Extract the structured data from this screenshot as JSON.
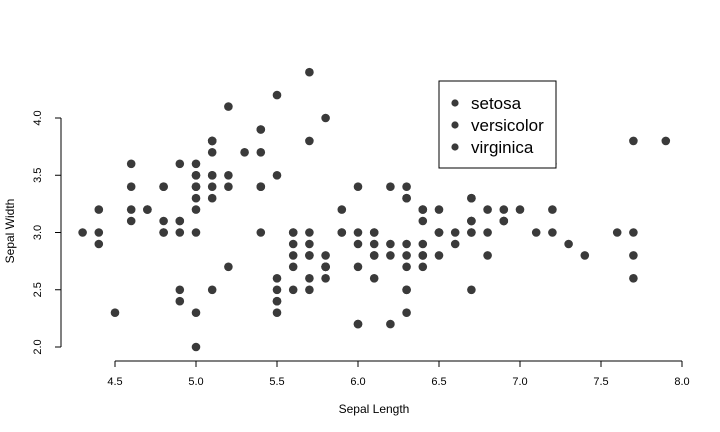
{
  "chart_data": {
    "type": "scatter",
    "xlabel": "Sepal Length",
    "ylabel": "Sepal Width",
    "xlim": [
      4.3,
      7.9
    ],
    "ylim": [
      2.0,
      4.4
    ],
    "x_ticks": [
      4.5,
      5.0,
      5.5,
      6.0,
      6.5,
      7.0,
      7.5,
      8.0
    ],
    "x_tick_labels": [
      "4.5",
      "5.0",
      "5.5",
      "6.0",
      "6.5",
      "7.0",
      "7.5",
      "8.0"
    ],
    "y_ticks": [
      2.0,
      2.5,
      3.0,
      3.5,
      4.0
    ],
    "y_tick_labels": [
      "2.0",
      "2.5",
      "3.0",
      "3.5",
      "4.0"
    ],
    "grid": false,
    "legend_position": "top-right",
    "marker_color": "#3a3a3a",
    "series": [
      {
        "name": "setosa",
        "points": [
          [
            5.1,
            3.5
          ],
          [
            4.9,
            3.0
          ],
          [
            4.7,
            3.2
          ],
          [
            4.6,
            3.1
          ],
          [
            5.0,
            3.6
          ],
          [
            5.4,
            3.9
          ],
          [
            4.6,
            3.4
          ],
          [
            5.0,
            3.4
          ],
          [
            4.4,
            2.9
          ],
          [
            4.9,
            3.1
          ],
          [
            5.4,
            3.7
          ],
          [
            4.8,
            3.4
          ],
          [
            4.8,
            3.0
          ],
          [
            4.3,
            3.0
          ],
          [
            5.8,
            4.0
          ],
          [
            5.7,
            4.4
          ],
          [
            5.4,
            3.9
          ],
          [
            5.1,
            3.5
          ],
          [
            5.7,
            3.8
          ],
          [
            5.1,
            3.8
          ],
          [
            5.4,
            3.4
          ],
          [
            5.1,
            3.7
          ],
          [
            4.6,
            3.6
          ],
          [
            5.1,
            3.3
          ],
          [
            4.8,
            3.4
          ],
          [
            5.0,
            3.0
          ],
          [
            5.0,
            3.4
          ],
          [
            5.2,
            3.5
          ],
          [
            5.2,
            3.4
          ],
          [
            4.7,
            3.2
          ],
          [
            4.8,
            3.1
          ],
          [
            5.4,
            3.4
          ],
          [
            5.2,
            4.1
          ],
          [
            5.5,
            4.2
          ],
          [
            4.9,
            3.1
          ],
          [
            5.0,
            3.2
          ],
          [
            5.5,
            3.5
          ],
          [
            4.9,
            3.6
          ],
          [
            4.4,
            3.0
          ],
          [
            5.1,
            3.4
          ],
          [
            5.0,
            3.5
          ],
          [
            4.5,
            2.3
          ],
          [
            4.4,
            3.2
          ],
          [
            5.0,
            3.5
          ],
          [
            5.1,
            3.8
          ],
          [
            4.8,
            3.0
          ],
          [
            5.1,
            3.8
          ],
          [
            4.6,
            3.2
          ],
          [
            5.3,
            3.7
          ],
          [
            5.0,
            3.3
          ]
        ]
      },
      {
        "name": "versicolor",
        "points": [
          [
            7.0,
            3.2
          ],
          [
            6.4,
            3.2
          ],
          [
            6.9,
            3.1
          ],
          [
            5.5,
            2.3
          ],
          [
            6.5,
            2.8
          ],
          [
            5.7,
            2.8
          ],
          [
            6.3,
            3.3
          ],
          [
            4.9,
            2.4
          ],
          [
            6.6,
            2.9
          ],
          [
            5.2,
            2.7
          ],
          [
            5.0,
            2.0
          ],
          [
            5.9,
            3.0
          ],
          [
            6.0,
            2.2
          ],
          [
            6.1,
            2.9
          ],
          [
            5.6,
            2.9
          ],
          [
            6.7,
            3.1
          ],
          [
            5.6,
            3.0
          ],
          [
            5.8,
            2.7
          ],
          [
            6.2,
            2.2
          ],
          [
            5.6,
            2.5
          ],
          [
            5.9,
            3.2
          ],
          [
            6.1,
            2.8
          ],
          [
            6.3,
            2.5
          ],
          [
            6.1,
            2.8
          ],
          [
            6.4,
            2.9
          ],
          [
            6.6,
            3.0
          ],
          [
            6.8,
            2.8
          ],
          [
            6.7,
            3.0
          ],
          [
            6.0,
            2.9
          ],
          [
            5.7,
            2.6
          ],
          [
            5.5,
            2.4
          ],
          [
            5.5,
            2.4
          ],
          [
            5.8,
            2.7
          ],
          [
            6.0,
            2.7
          ],
          [
            5.4,
            3.0
          ],
          [
            6.0,
            3.4
          ],
          [
            6.7,
            3.1
          ],
          [
            6.3,
            2.3
          ],
          [
            5.6,
            3.0
          ],
          [
            5.5,
            2.5
          ],
          [
            5.5,
            2.6
          ],
          [
            6.1,
            3.0
          ],
          [
            5.8,
            2.6
          ],
          [
            5.0,
            2.3
          ],
          [
            5.6,
            2.7
          ],
          [
            5.7,
            3.0
          ],
          [
            5.7,
            2.9
          ],
          [
            6.2,
            2.9
          ],
          [
            5.1,
            2.5
          ],
          [
            5.7,
            2.8
          ]
        ]
      },
      {
        "name": "virginica",
        "points": [
          [
            6.3,
            3.3
          ],
          [
            5.8,
            2.7
          ],
          [
            7.1,
            3.0
          ],
          [
            6.3,
            2.9
          ],
          [
            6.5,
            3.0
          ],
          [
            7.6,
            3.0
          ],
          [
            4.9,
            2.5
          ],
          [
            7.3,
            2.9
          ],
          [
            6.7,
            2.5
          ],
          [
            7.2,
            3.6
          ],
          [
            6.5,
            3.2
          ],
          [
            6.4,
            2.7
          ],
          [
            6.8,
            3.0
          ],
          [
            5.7,
            2.5
          ],
          [
            5.8,
            2.8
          ],
          [
            6.4,
            3.2
          ],
          [
            6.5,
            3.0
          ],
          [
            7.7,
            3.8
          ],
          [
            7.7,
            2.6
          ],
          [
            6.0,
            2.2
          ],
          [
            6.9,
            3.2
          ],
          [
            5.6,
            2.8
          ],
          [
            7.7,
            2.8
          ],
          [
            6.3,
            2.7
          ],
          [
            6.7,
            3.3
          ],
          [
            7.2,
            3.2
          ],
          [
            6.2,
            2.8
          ],
          [
            6.1,
            3.0
          ],
          [
            6.4,
            2.8
          ],
          [
            7.2,
            3.0
          ],
          [
            7.4,
            2.8
          ],
          [
            7.9,
            3.8
          ],
          [
            6.4,
            2.8
          ],
          [
            6.3,
            2.8
          ],
          [
            6.1,
            2.6
          ],
          [
            7.7,
            3.0
          ],
          [
            6.3,
            3.4
          ],
          [
            6.4,
            3.1
          ],
          [
            6.0,
            3.0
          ],
          [
            6.9,
            3.1
          ],
          [
            6.7,
            3.1
          ],
          [
            6.9,
            3.1
          ],
          [
            5.8,
            2.7
          ],
          [
            6.8,
            3.2
          ],
          [
            6.7,
            3.3
          ],
          [
            6.7,
            3.0
          ],
          [
            6.3,
            2.5
          ],
          [
            6.5,
            3.0
          ],
          [
            6.2,
            3.4
          ],
          [
            5.9,
            3.0
          ]
        ]
      }
    ]
  }
}
